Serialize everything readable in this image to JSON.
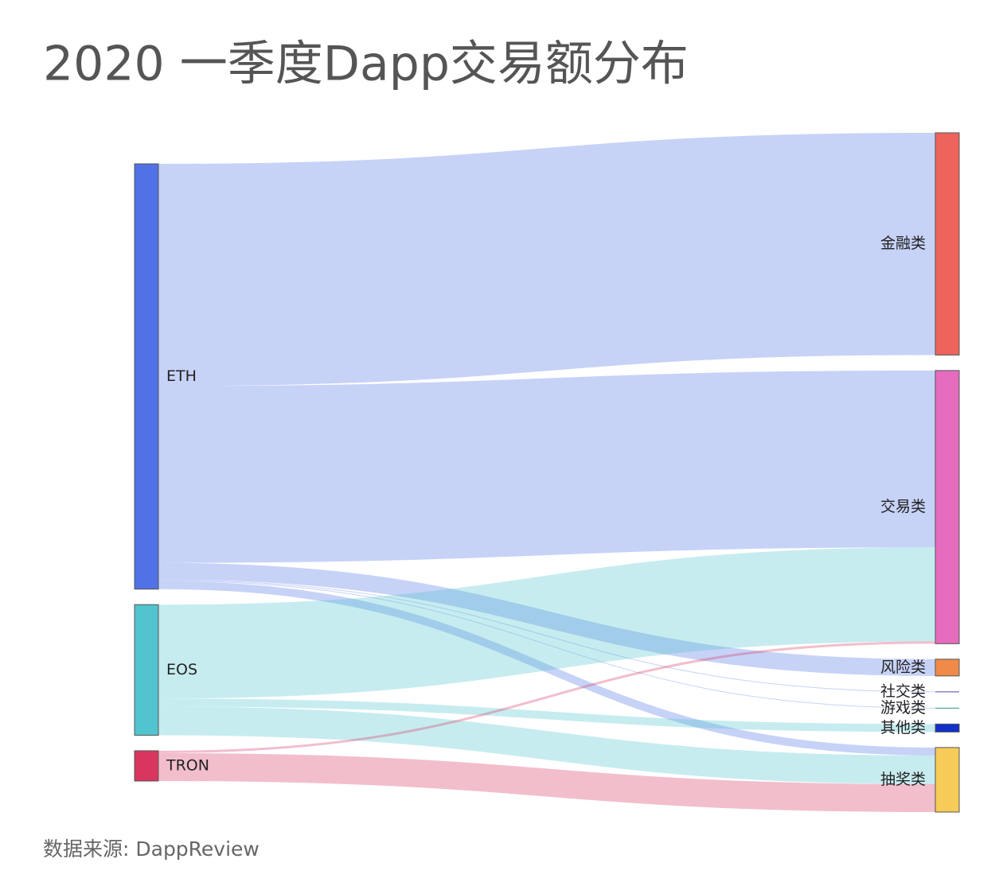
{
  "chart_data": {
    "type": "sankey",
    "title": "2020 一季度Dapp交易额分布",
    "source_note": "数据来源: DappReview",
    "nodes": [
      {
        "name": "ETH",
        "color": "#5072e6",
        "column": "left"
      },
      {
        "name": "EOS",
        "color": "#52c4cf",
        "column": "left"
      },
      {
        "name": "TRON",
        "color": "#d8365f",
        "column": "left"
      },
      {
        "name": "金融类",
        "color": "#ee635c",
        "column": "right"
      },
      {
        "name": "交易类",
        "color": "#e56cbf",
        "column": "right"
      },
      {
        "name": "风险类",
        "color": "#f08a48",
        "column": "right"
      },
      {
        "name": "社交类",
        "color": "#5a3fb0",
        "column": "right"
      },
      {
        "name": "游戏类",
        "color": "#2f8f8f",
        "column": "right"
      },
      {
        "name": "其他类",
        "color": "#1330c8",
        "column": "right"
      },
      {
        "name": "抽奖类",
        "color": "#f6cb58",
        "column": "right"
      }
    ],
    "links": [
      {
        "source": "ETH",
        "target": "金融类",
        "value": 279
      },
      {
        "source": "ETH",
        "target": "交易类",
        "value": 222
      },
      {
        "source": "ETH",
        "target": "风险类",
        "value": 21
      },
      {
        "source": "ETH",
        "target": "社交类",
        "value": 1
      },
      {
        "source": "ETH",
        "target": "游戏类",
        "value": 1
      },
      {
        "source": "ETH",
        "target": "抽奖类",
        "value": 10
      },
      {
        "source": "EOS",
        "target": "交易类",
        "value": 118
      },
      {
        "source": "EOS",
        "target": "其他类",
        "value": 10
      },
      {
        "source": "EOS",
        "target": "抽奖类",
        "value": 36
      },
      {
        "source": "TRON",
        "target": "交易类",
        "value": 3
      },
      {
        "source": "TRON",
        "target": "抽奖类",
        "value": 35
      }
    ]
  }
}
